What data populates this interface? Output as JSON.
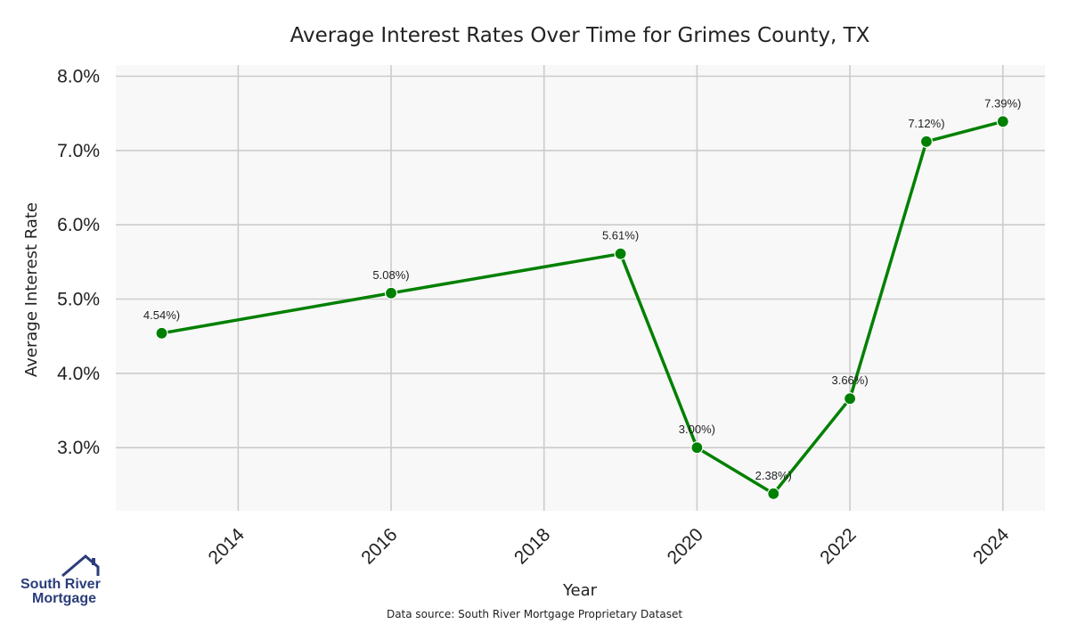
{
  "chart_data": {
    "type": "line",
    "title": "Average Interest Rates Over Time for Grimes County, TX",
    "xlabel": "Year",
    "ylabel": "Average Interest Rate",
    "x": [
      2013,
      2016,
      2019,
      2020,
      2021,
      2022,
      2023,
      2024
    ],
    "series": [
      {
        "values": [
          4.54,
          5.08,
          5.61,
          3.0,
          2.38,
          3.66,
          7.12,
          7.39
        ],
        "labels": [
          "4.54%)",
          "5.08%)",
          "5.61%)",
          "3.00%)",
          "2.38%)",
          "3.66%)",
          "7.12%)",
          "7.39%)"
        ]
      }
    ],
    "xticks": [
      2014,
      2016,
      2018,
      2020,
      2022,
      2024
    ],
    "yticks": [
      3.0,
      4.0,
      5.0,
      6.0,
      7.0,
      8.0
    ],
    "ytick_labels": [
      "3.0%",
      "4.0%",
      "5.0%",
      "6.0%",
      "7.0%",
      "8.0%"
    ],
    "xlim": [
      2012.4,
      2024.55
    ],
    "ylim": [
      2.15,
      8.15
    ],
    "grid": true,
    "colors": {
      "line": "#008000",
      "plot_bg": "#f8f8f8",
      "grid": "#cccccc"
    }
  },
  "source_note": "Data source: South River Mortgage Proprietary Dataset",
  "logo": {
    "line1": "South River",
    "line2": "Mortgage",
    "icon": "house-roof-icon",
    "color": "#2b3d7a"
  }
}
